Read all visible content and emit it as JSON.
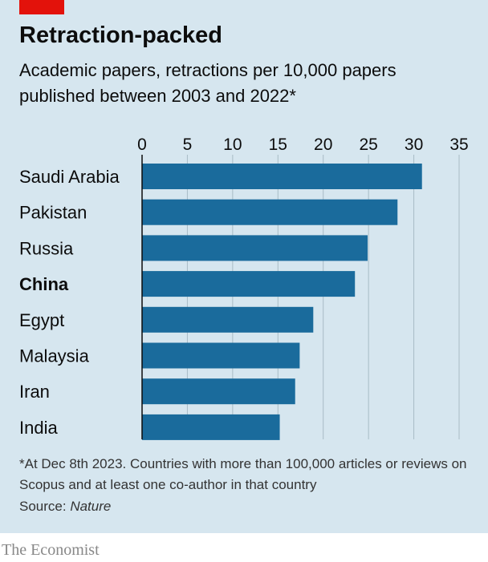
{
  "header": {
    "title": "Retraction-packed",
    "subtitle": "Academic papers, retractions per 10,000 papers published between 2003 and 2022*"
  },
  "colors": {
    "bar": "#1a6b9c",
    "panel": "#d6e6ef",
    "accent": "#e3120b",
    "grid": "#a9bcc6"
  },
  "chart_data": {
    "type": "bar",
    "orientation": "horizontal",
    "categories": [
      "Saudi Arabia",
      "Pakistan",
      "Russia",
      "China",
      "Egypt",
      "Malaysia",
      "Iran",
      "India"
    ],
    "highlighted_category": "China",
    "values": [
      30.9,
      28.2,
      24.9,
      23.5,
      18.9,
      17.4,
      16.9,
      15.2
    ],
    "xlim": [
      0,
      35
    ],
    "xticks": [
      0,
      5,
      10,
      15,
      20,
      25,
      30,
      35
    ],
    "axis_position": "top",
    "grid": true
  },
  "footer": {
    "note": "*At Dec 8th 2023. Countries with more than 100,000 articles or reviews on Scopus and at least one co-author in that country",
    "source_prefix": "Source: ",
    "source_name": "Nature",
    "brand": "The Economist"
  }
}
